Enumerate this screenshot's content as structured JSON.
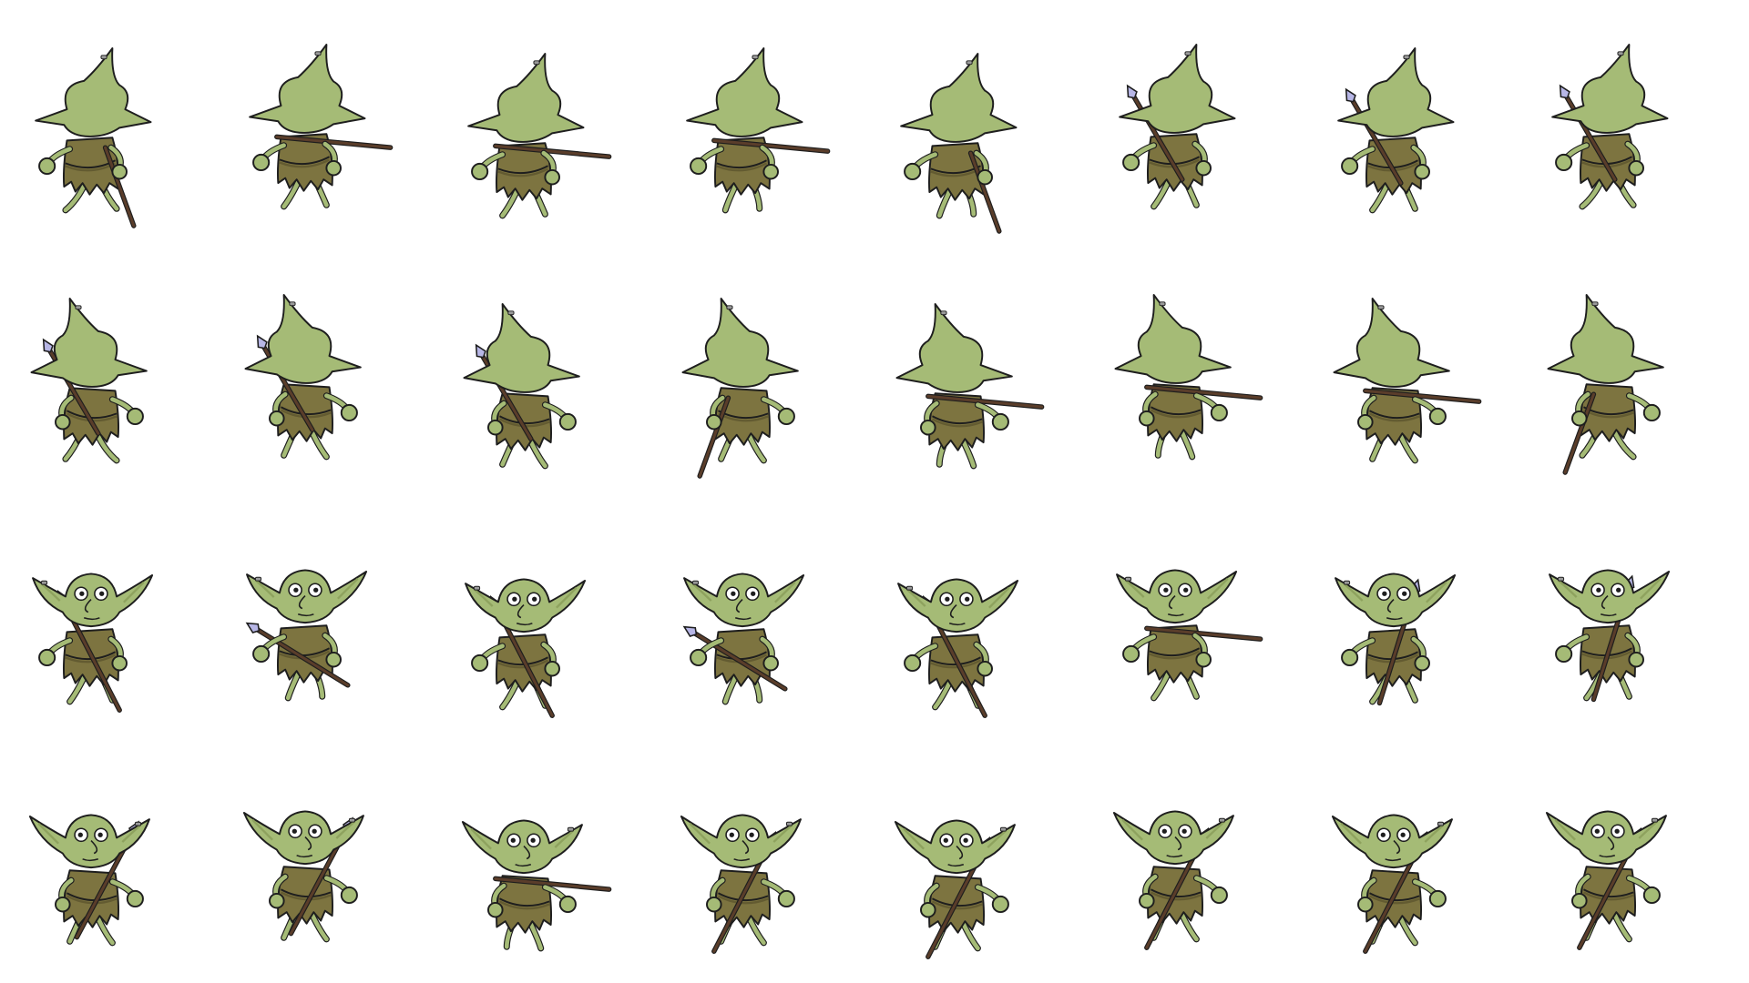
{
  "sprite_sheet": {
    "background": "#ffffff",
    "palette": {
      "skin": "#a5bb76",
      "skin_dark": "#8ea25e",
      "tunic": "#7d7440",
      "tunic_dark": "#635b31",
      "outline": "#1e1e1e",
      "spear_shaft": "#5a3d2a",
      "spear_tip": "#b7b6e6",
      "eye": "#ffffff",
      "earring": "#9a9a9a"
    },
    "rows": [
      {
        "view": "back",
        "frames": [
          {
            "weapon": "spear-back-down",
            "lean": -1
          },
          {
            "weapon": "spear-held-horizontal-right",
            "lean": 0
          },
          {
            "weapon": "spear-held-horizontal-right",
            "lean": 0
          },
          {
            "weapon": "spear-held-horizontal-right",
            "lean": 1
          },
          {
            "weapon": "spear-back-down",
            "lean": 1
          },
          {
            "weapon": "spear-tip-up-left",
            "lean": 0
          },
          {
            "weapon": "spear-tip-up-left",
            "lean": 0
          },
          {
            "weapon": "spear-tip-up-left",
            "lean": -1
          }
        ]
      },
      {
        "view": "back-turned",
        "frames": [
          {
            "weapon": "spear-tip-up-right",
            "lean": -1
          },
          {
            "weapon": "spear-tip-up-right",
            "lean": 0
          },
          {
            "weapon": "spear-tip-up-right",
            "lean": 0
          },
          {
            "weapon": "spear-back-down",
            "lean": 0
          },
          {
            "weapon": "spear-held-horizontal-left",
            "lean": 1
          },
          {
            "weapon": "spear-held-horizontal-left",
            "lean": 1
          },
          {
            "weapon": "spear-held-horizontal-left",
            "lean": 0
          },
          {
            "weapon": "spear-back-down",
            "lean": -1
          }
        ]
      },
      {
        "view": "front",
        "frames": [
          {
            "weapon": "spear-diagonal-tip-up",
            "lean": 0
          },
          {
            "weapon": "spear-diagonal-tip-left",
            "lean": 1
          },
          {
            "weapon": "spear-diagonal-tip-up",
            "lean": 0
          },
          {
            "weapon": "spear-diagonal-tip-left",
            "lean": 1
          },
          {
            "weapon": "spear-diagonal-tip-up",
            "lean": 0
          },
          {
            "weapon": "spear-held-horizontal-right",
            "lean": 0
          },
          {
            "weapon": "spear-diagonal-tip-down",
            "lean": 0
          },
          {
            "weapon": "spear-diagonal-tip-down",
            "lean": 0
          }
        ]
      },
      {
        "view": "front-turned",
        "frames": [
          {
            "weapon": "spear-diagonal-tip-down-left",
            "lean": 0
          },
          {
            "weapon": "spear-diagonal-tip-down-left",
            "lean": 0
          },
          {
            "weapon": "spear-held-horizontal-left",
            "lean": 1
          },
          {
            "weapon": "spear-diagonal-tip-up",
            "lean": 0
          },
          {
            "weapon": "spear-diagonal-tip-up",
            "lean": 0
          },
          {
            "weapon": "spear-diagonal-tip-up",
            "lean": 0
          },
          {
            "weapon": "spear-diagonal-tip-up",
            "lean": 0
          },
          {
            "weapon": "spear-diagonal-tip-up",
            "lean": 0
          }
        ]
      }
    ]
  }
}
